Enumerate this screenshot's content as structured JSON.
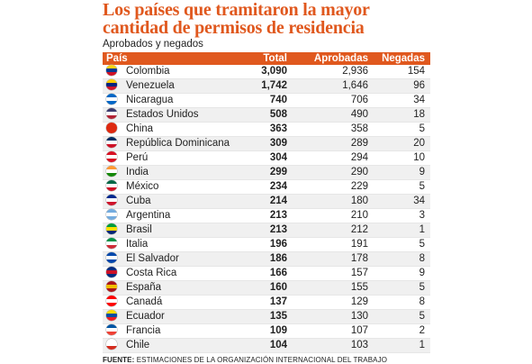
{
  "header": {
    "title": "Los países que tramitaron la mayor cantidad de permisos de residencia",
    "subtitle": "Aprobados y negados"
  },
  "table": {
    "columns": [
      "País",
      "Total",
      "Aprobadas",
      "Negadas"
    ],
    "rows": [
      {
        "country": "Colombia",
        "total": "3,090",
        "approved": "2,936",
        "denied": "154",
        "flag": "colombia-flag-icon",
        "colors": [
          "#fcd116",
          "#003893",
          "#ce1126"
        ]
      },
      {
        "country": "Venezuela",
        "total": "1,742",
        "approved": "1,646",
        "denied": "96",
        "flag": "venezuela-flag-icon",
        "colors": [
          "#ffcc00",
          "#00247d",
          "#cf142b"
        ]
      },
      {
        "country": "Nicaragua",
        "total": "740",
        "approved": "706",
        "denied": "34",
        "flag": "nicaragua-flag-icon",
        "colors": [
          "#0067c6",
          "#ffffff",
          "#0067c6"
        ]
      },
      {
        "country": "Estados Unidos",
        "total": "508",
        "approved": "490",
        "denied": "18",
        "flag": "usa-flag-icon",
        "colors": [
          "#3c3b6e",
          "#ffffff",
          "#b22234"
        ]
      },
      {
        "country": "China",
        "total": "363",
        "approved": "358",
        "denied": "5",
        "flag": "china-flag-icon",
        "colors": [
          "#de2910",
          "#de2910",
          "#de2910"
        ]
      },
      {
        "country": "República Dominicana",
        "total": "309",
        "approved": "289",
        "denied": "20",
        "flag": "dominican-republic-flag-icon",
        "colors": [
          "#002d62",
          "#ffffff",
          "#ce1126"
        ]
      },
      {
        "country": "Perú",
        "total": "304",
        "approved": "294",
        "denied": "10",
        "flag": "peru-flag-icon",
        "colors": [
          "#d91023",
          "#ffffff",
          "#d91023"
        ]
      },
      {
        "country": "India",
        "total": "299",
        "approved": "290",
        "denied": "9",
        "flag": "india-flag-icon",
        "colors": [
          "#ff9933",
          "#ffffff",
          "#138808"
        ]
      },
      {
        "country": "México",
        "total": "234",
        "approved": "229",
        "denied": "5",
        "flag": "mexico-flag-icon",
        "colors": [
          "#006847",
          "#ffffff",
          "#ce1126"
        ]
      },
      {
        "country": "Cuba",
        "total": "214",
        "approved": "180",
        "denied": "34",
        "flag": "cuba-flag-icon",
        "colors": [
          "#002a8f",
          "#ffffff",
          "#cf142b"
        ]
      },
      {
        "country": "Argentina",
        "total": "213",
        "approved": "210",
        "denied": "3",
        "flag": "argentina-flag-icon",
        "colors": [
          "#74acdf",
          "#ffffff",
          "#74acdf"
        ]
      },
      {
        "country": "Brasil",
        "total": "213",
        "approved": "212",
        "denied": "1",
        "flag": "brazil-flag-icon",
        "colors": [
          "#009c3b",
          "#ffdf00",
          "#002776"
        ]
      },
      {
        "country": "Italia",
        "total": "196",
        "approved": "191",
        "denied": "5",
        "flag": "italy-flag-icon",
        "colors": [
          "#009246",
          "#ffffff",
          "#ce2b37"
        ]
      },
      {
        "country": "El Salvador",
        "total": "186",
        "approved": "178",
        "denied": "8",
        "flag": "el-salvador-flag-icon",
        "colors": [
          "#0047ab",
          "#ffffff",
          "#0047ab"
        ]
      },
      {
        "country": "Costa Rica",
        "total": "166",
        "approved": "157",
        "denied": "9",
        "flag": "costa-rica-flag-icon",
        "colors": [
          "#002b7f",
          "#ce1126",
          "#002b7f"
        ]
      },
      {
        "country": "España",
        "total": "160",
        "approved": "155",
        "denied": "5",
        "flag": "spain-flag-icon",
        "colors": [
          "#aa151b",
          "#f1bf00",
          "#aa151b"
        ]
      },
      {
        "country": "Canadá",
        "total": "137",
        "approved": "129",
        "denied": "8",
        "flag": "canada-flag-icon",
        "colors": [
          "#ff0000",
          "#ffffff",
          "#ff0000"
        ]
      },
      {
        "country": "Ecuador",
        "total": "135",
        "approved": "130",
        "denied": "5",
        "flag": "ecuador-flag-icon",
        "colors": [
          "#ffdd00",
          "#034ea2",
          "#ed1c24"
        ]
      },
      {
        "country": "Francia",
        "total": "109",
        "approved": "107",
        "denied": "2",
        "flag": "france-flag-icon",
        "colors": [
          "#0055a4",
          "#ffffff",
          "#ef4135"
        ]
      },
      {
        "country": "Chile",
        "total": "104",
        "approved": "103",
        "denied": "1",
        "flag": "chile-flag-icon",
        "colors": [
          "#ffffff",
          "#ffffff",
          "#d52b1e"
        ]
      }
    ]
  },
  "footer": {
    "source_label": "FUENTE:",
    "source_text": " ESTIMACIONES DE LA ORGANIZACIÓN INTERNACIONAL DEL TRABAJO"
  },
  "colors": {
    "accent": "#e0581e",
    "stripe": "#f0f0f0"
  }
}
